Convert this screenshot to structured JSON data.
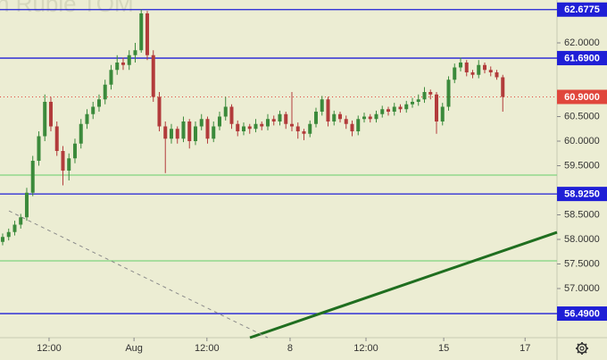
{
  "chart_data": {
    "type": "candlestick",
    "watermark": "n Ruble TOM",
    "ohlc": [
      [
        57.95,
        58.12,
        57.88,
        58.05
      ],
      [
        58.05,
        58.22,
        57.98,
        58.15
      ],
      [
        58.15,
        58.38,
        58.08,
        58.3
      ],
      [
        58.3,
        58.52,
        58.22,
        58.45
      ],
      [
        58.45,
        59.05,
        58.38,
        58.95
      ],
      [
        58.95,
        59.7,
        58.88,
        59.6
      ],
      [
        59.6,
        60.2,
        59.5,
        60.1
      ],
      [
        60.1,
        60.95,
        60.0,
        60.8
      ],
      [
        60.8,
        60.9,
        60.2,
        60.3
      ],
      [
        60.3,
        60.4,
        59.7,
        59.8
      ],
      [
        59.8,
        59.9,
        59.1,
        59.4
      ],
      [
        59.4,
        59.75,
        59.2,
        59.65
      ],
      [
        59.65,
        60.05,
        59.55,
        59.95
      ],
      [
        59.95,
        60.45,
        59.85,
        60.35
      ],
      [
        60.35,
        60.65,
        60.25,
        60.55
      ],
      [
        60.55,
        60.8,
        60.45,
        60.7
      ],
      [
        60.7,
        60.95,
        60.6,
        60.85
      ],
      [
        60.85,
        61.25,
        60.75,
        61.15
      ],
      [
        61.15,
        61.55,
        61.05,
        61.45
      ],
      [
        61.45,
        61.75,
        61.35,
        61.6
      ],
      [
        61.6,
        61.7,
        61.45,
        61.55
      ],
      [
        61.55,
        61.85,
        61.45,
        61.75
      ],
      [
        61.75,
        62.0,
        61.6,
        61.85
      ],
      [
        61.85,
        62.68,
        61.8,
        62.6
      ],
      [
        62.6,
        62.65,
        61.65,
        61.75
      ],
      [
        61.75,
        61.85,
        60.8,
        60.9
      ],
      [
        60.9,
        61.0,
        60.2,
        60.3
      ],
      [
        60.3,
        60.4,
        59.35,
        60.05
      ],
      [
        60.05,
        60.35,
        59.95,
        60.25
      ],
      [
        60.25,
        60.3,
        59.95,
        60.05
      ],
      [
        60.05,
        60.5,
        59.98,
        60.4
      ],
      [
        60.4,
        60.45,
        59.85,
        60.0
      ],
      [
        60.0,
        60.4,
        59.92,
        60.3
      ],
      [
        60.3,
        60.55,
        60.22,
        60.45
      ],
      [
        60.45,
        60.5,
        59.95,
        60.05
      ],
      [
        60.05,
        60.4,
        59.98,
        60.3
      ],
      [
        60.3,
        60.6,
        60.22,
        60.5
      ],
      [
        60.5,
        60.9,
        60.42,
        60.7
      ],
      [
        60.7,
        60.75,
        60.25,
        60.35
      ],
      [
        60.35,
        60.42,
        60.1,
        60.2
      ],
      [
        60.2,
        60.38,
        60.12,
        60.3
      ],
      [
        60.3,
        60.35,
        60.15,
        60.25
      ],
      [
        60.25,
        60.45,
        60.18,
        60.35
      ],
      [
        60.35,
        60.4,
        60.22,
        60.3
      ],
      [
        60.3,
        60.55,
        60.22,
        60.45
      ],
      [
        60.45,
        60.52,
        60.32,
        60.4
      ],
      [
        60.4,
        60.62,
        60.32,
        60.55
      ],
      [
        60.55,
        60.6,
        60.25,
        60.35
      ],
      [
        60.35,
        61.0,
        60.2,
        60.3
      ],
      [
        60.3,
        60.38,
        60.05,
        60.2
      ],
      [
        60.2,
        60.25,
        60.02,
        60.15
      ],
      [
        60.15,
        60.42,
        60.08,
        60.35
      ],
      [
        60.35,
        60.68,
        60.28,
        60.6
      ],
      [
        60.6,
        60.92,
        60.52,
        60.85
      ],
      [
        60.85,
        60.9,
        60.3,
        60.4
      ],
      [
        60.4,
        60.62,
        60.32,
        60.55
      ],
      [
        60.55,
        60.6,
        60.38,
        60.45
      ],
      [
        60.45,
        60.52,
        60.25,
        60.35
      ],
      [
        60.35,
        60.42,
        60.1,
        60.2
      ],
      [
        60.2,
        60.52,
        60.12,
        60.45
      ],
      [
        60.45,
        60.58,
        60.38,
        60.5
      ],
      [
        60.5,
        60.55,
        60.38,
        60.45
      ],
      [
        60.45,
        60.62,
        60.38,
        60.55
      ],
      [
        60.55,
        60.72,
        60.48,
        60.65
      ],
      [
        60.65,
        60.7,
        60.52,
        60.6
      ],
      [
        60.6,
        60.78,
        60.52,
        60.7
      ],
      [
        60.7,
        60.75,
        60.58,
        60.65
      ],
      [
        60.65,
        60.82,
        60.58,
        60.75
      ],
      [
        60.75,
        60.88,
        60.68,
        60.8
      ],
      [
        60.8,
        60.95,
        60.72,
        60.85
      ],
      [
        60.85,
        61.1,
        60.78,
        61.0
      ],
      [
        61.0,
        61.05,
        60.85,
        60.95
      ],
      [
        60.95,
        61.0,
        60.15,
        60.4
      ],
      [
        60.4,
        60.78,
        60.32,
        60.7
      ],
      [
        60.7,
        61.32,
        60.62,
        61.25
      ],
      [
        61.25,
        61.58,
        61.18,
        61.5
      ],
      [
        61.5,
        61.7,
        61.42,
        61.6
      ],
      [
        61.6,
        61.65,
        61.32,
        61.4
      ],
      [
        61.4,
        61.45,
        61.28,
        61.35
      ],
      [
        61.35,
        61.65,
        61.28,
        61.55
      ],
      [
        61.55,
        61.6,
        61.38,
        61.45
      ],
      [
        61.45,
        61.52,
        61.32,
        61.4
      ],
      [
        61.4,
        61.45,
        61.25,
        61.3
      ],
      [
        61.3,
        61.35,
        60.6,
        60.9
      ]
    ],
    "up_color": "#3b8a3b",
    "down_color": "#b23b3b",
    "xlim": [
      -0.44,
      92
    ],
    "xticks": [
      {
        "value": 7.7,
        "label": "12:00"
      },
      {
        "value": 21.8,
        "label": "Aug"
      },
      {
        "value": 33.9,
        "label": "12:00"
      },
      {
        "value": 47.7,
        "label": "8"
      },
      {
        "value": 60.3,
        "label": "12:00"
      },
      {
        "value": 73.2,
        "label": "15"
      },
      {
        "value": 86.7,
        "label": "17"
      }
    ],
    "ylim": [
      56.0,
      62.8727
    ],
    "yticks": [
      {
        "value": 62.0,
        "label": "62.0000"
      },
      {
        "value": 60.5,
        "label": "60.5000"
      },
      {
        "value": 60.0,
        "label": "60.0000"
      },
      {
        "value": 59.5,
        "label": "59.5000"
      },
      {
        "value": 58.5,
        "label": "58.5000"
      },
      {
        "value": 58.0,
        "label": "58.0000"
      },
      {
        "value": 57.5,
        "label": "57.5000"
      },
      {
        "value": 57.0,
        "label": "57.0000"
      }
    ],
    "levels": [
      {
        "value": 62.6775,
        "label": "62.6775",
        "color": "#1f1fd6",
        "style": "solid"
      },
      {
        "value": 61.69,
        "label": "61.6900",
        "color": "#1f1fd6",
        "style": "solid"
      },
      {
        "value": 60.9,
        "label": "60.9000",
        "color": "#e0463c",
        "style": "dotted"
      },
      {
        "value": 58.925,
        "label": "58.9250",
        "color": "#1f1fd6",
        "style": "solid"
      },
      {
        "value": 56.49,
        "label": "56.4900",
        "color": "#1f1fd6",
        "style": "solid"
      },
      {
        "value": 59.309,
        "color": "#7fd47f",
        "style": "solid"
      },
      {
        "value": 57.564,
        "color": "#7fd47f",
        "style": "solid"
      }
    ],
    "trendlines": [
      {
        "x": [
          41.04,
          92
        ],
        "y": [
          56.0,
          58.145
        ],
        "color": "#1f6e1f",
        "style": "solid"
      },
      {
        "x": [
          1.04,
          44
        ],
        "y": [
          58.58,
          56.0
        ],
        "color": "#8a8a8a",
        "style": "dashed"
      }
    ]
  }
}
